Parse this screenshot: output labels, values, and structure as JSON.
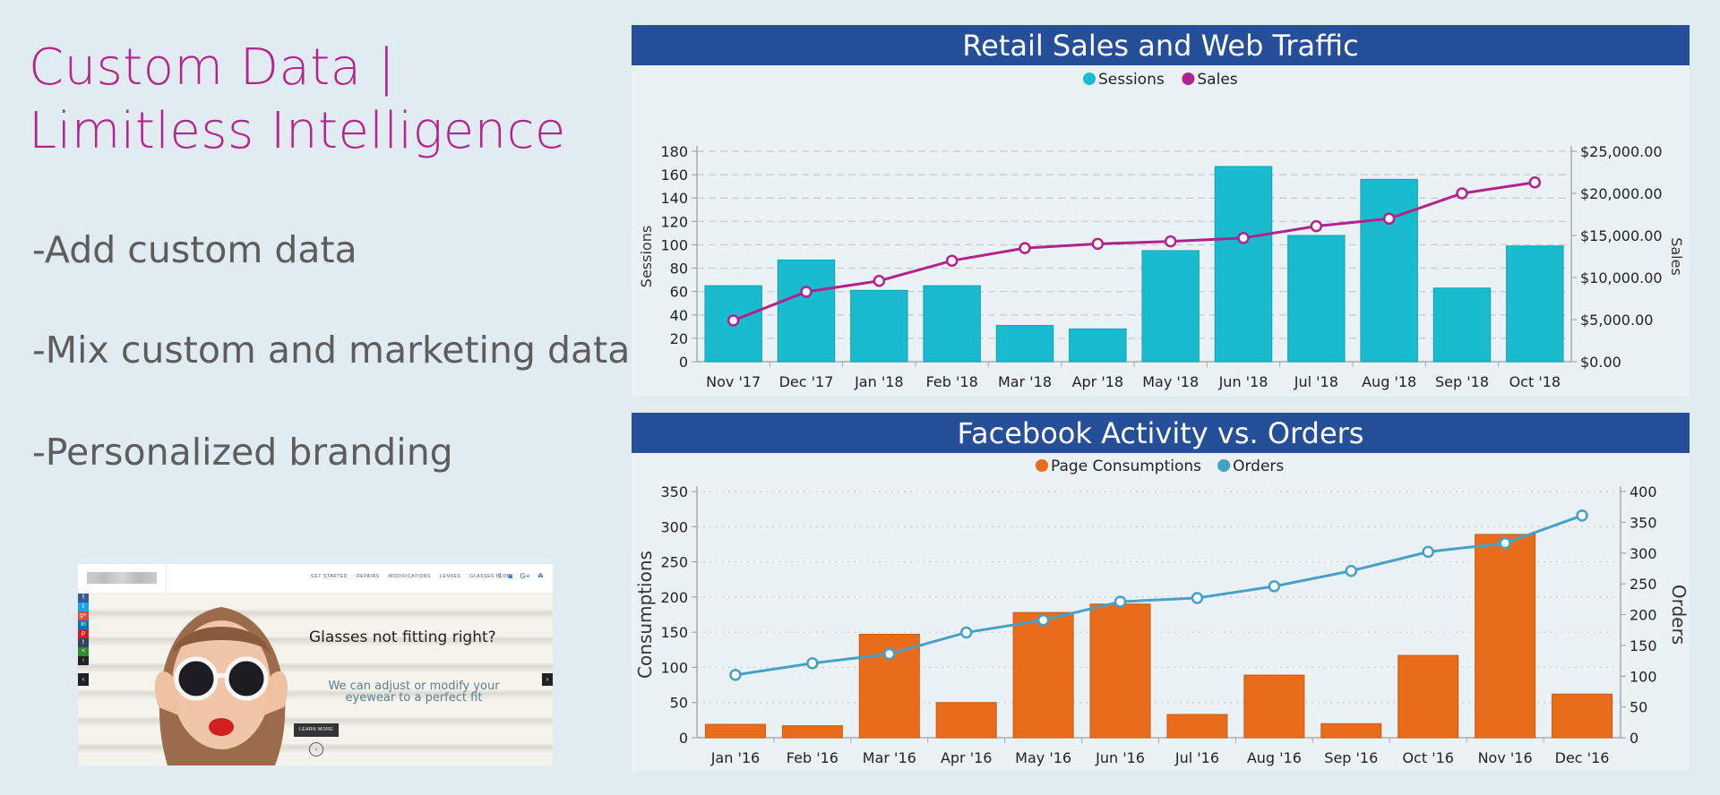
{
  "slide": {
    "headline_lines": [
      "Custom Data |",
      "Limitless Intelligence"
    ],
    "bullets": [
      "-Add custom data",
      "-Mix custom and marketing data",
      "-Personalized branding"
    ],
    "colors": {
      "headline": "#b5238f",
      "bullets": "#5d5d5d",
      "background": "#e1ebf2",
      "panel_header": "#264f99"
    }
  },
  "thumbnail": {
    "menu_items": [
      "GET STARTED",
      "REPAIRS",
      "MODIFICATIONS",
      "LENSES",
      "GLASSES BLOG"
    ],
    "social_top": [
      "f",
      "◙",
      "G+",
      "☘"
    ],
    "share_buttons": [
      {
        "label": "f",
        "color": "#3b5998"
      },
      {
        "label": "t",
        "color": "#1da1f2"
      },
      {
        "label": "g+",
        "color": "#dd4b39"
      },
      {
        "label": "in",
        "color": "#0077b5"
      },
      {
        "label": "p",
        "color": "#cb2027"
      },
      {
        "label": "t",
        "color": "#35465c"
      },
      {
        "label": "<",
        "color": "#2e8b33"
      },
      {
        "label": "‹",
        "color": "#222222"
      }
    ],
    "headline": "Glasses not fitting right?",
    "subtext_lines": [
      "We can adjust or modify your",
      "eyewear to a perfect fit"
    ],
    "button_label": "LEARN MORE",
    "down_icon": "⌄",
    "prev_icon": "‹",
    "next_icon": "›"
  },
  "chart_data": [
    {
      "type": "bar",
      "title": "Retail Sales and Web Traffic",
      "categories": [
        "Nov '17",
        "Dec '17",
        "Jan '18",
        "Feb '18",
        "Mar '18",
        "Apr '18",
        "May '18",
        "Jun '18",
        "Jul '18",
        "Aug '18",
        "Sep '18",
        "Oct '18"
      ],
      "series": [
        {
          "name": "Sessions",
          "type": "bar",
          "axis": "left",
          "color": "#19bccf",
          "values": [
            65,
            87,
            61,
            65,
            31,
            28,
            95,
            167,
            108,
            156,
            63,
            99
          ]
        },
        {
          "name": "Sales",
          "type": "line",
          "axis": "right",
          "color": "#b0238f",
          "values": [
            4900,
            8300,
            9600,
            12000,
            13500,
            14000,
            14300,
            14700,
            16100,
            17000,
            20000,
            21300
          ]
        }
      ],
      "ylabel": "Sessions",
      "ylabel_right": "Sales",
      "ylim": [
        0,
        180
      ],
      "yticks": [
        0,
        20,
        40,
        60,
        80,
        100,
        120,
        140,
        160,
        180
      ],
      "ylim_right": [
        0,
        25000
      ],
      "yticks_right": [
        "$0.00",
        "$5,000.00",
        "$10,000.00",
        "$15,000.00",
        "$20,000.00",
        "$25,000.00"
      ],
      "grid": "dashed",
      "legend": "top-center"
    },
    {
      "type": "bar",
      "title": "Facebook Activity vs. Orders",
      "categories": [
        "Jan '16",
        "Feb '16",
        "Mar '16",
        "Apr '16",
        "May '16",
        "Jun '16",
        "Jul '16",
        "Aug '16",
        "Sep '16",
        "Oct '16",
        "Nov '16",
        "Dec '16"
      ],
      "series": [
        {
          "name": "Page Consumptions",
          "type": "bar",
          "axis": "left",
          "color": "#e96c1b",
          "values": [
            19,
            17,
            147,
            50,
            178,
            190,
            33,
            89,
            20,
            117,
            289,
            62
          ]
        },
        {
          "name": "Orders",
          "type": "line",
          "axis": "right",
          "color": "#46a1c8",
          "values": [
            102,
            121,
            136,
            171,
            191,
            221,
            227,
            246,
            271,
            302,
            316,
            361
          ]
        }
      ],
      "ylabel": "Consumptions",
      "ylabel_right": "Orders",
      "ylim": [
        0,
        350
      ],
      "yticks": [
        0,
        50,
        100,
        150,
        200,
        250,
        300,
        350
      ],
      "ylim_right": [
        0,
        400
      ],
      "yticks_right": [
        "0",
        "50",
        "100",
        "150",
        "200",
        "250",
        "300",
        "350",
        "400"
      ],
      "grid": "dotted",
      "legend": "top-center"
    }
  ]
}
